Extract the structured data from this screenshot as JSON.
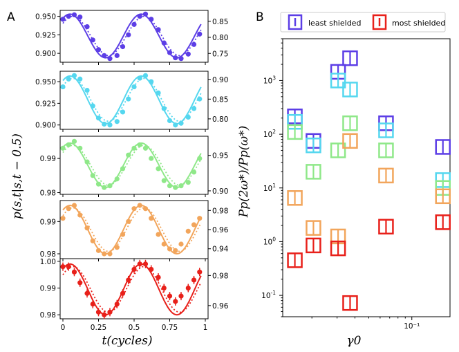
{
  "panels": {
    "left": "A",
    "right": "B"
  },
  "chart_data": [
    {
      "type": "line",
      "title": "A",
      "xlabel": "t(cycles)",
      "ylabel": "p(s,t|s,t − 0.5)",
      "x_ticks": [
        "0",
        "0.25",
        "0.5",
        "0.75",
        "1"
      ],
      "xlim": [
        0,
        1
      ],
      "subplots": [
        {
          "name": "purple",
          "color": "#5c3ee6",
          "ylim": [
            0.888,
            0.958
          ],
          "left_ticks": [
            "0.900",
            "0.925",
            "0.950"
          ],
          "left_tick_values": [
            0.9,
            0.925,
            0.95
          ],
          "right_ticks": [
            "0.75",
            "0.80",
            "0.85"
          ],
          "right_tick_fracs": [
            0.17,
            0.48,
            0.79
          ],
          "fit": {
            "mean": 0.9235,
            "amp": 0.0295,
            "phase": 0.3
          },
          "points": [
            [
              0.0,
              0.946
            ],
            [
              0.04,
              0.95
            ],
            [
              0.08,
              0.952
            ],
            [
              0.12,
              0.949
            ],
            [
              0.17,
              0.936
            ],
            [
              0.21,
              0.918
            ],
            [
              0.25,
              0.905
            ],
            [
              0.29,
              0.897
            ],
            [
              0.33,
              0.893
            ],
            [
              0.38,
              0.897
            ],
            [
              0.42,
              0.909
            ],
            [
              0.46,
              0.925
            ],
            [
              0.5,
              0.939
            ],
            [
              0.54,
              0.95
            ],
            [
              0.58,
              0.953
            ],
            [
              0.62,
              0.946
            ],
            [
              0.67,
              0.932
            ],
            [
              0.71,
              0.914
            ],
            [
              0.75,
              0.901
            ],
            [
              0.79,
              0.894
            ],
            [
              0.83,
              0.893
            ],
            [
              0.88,
              0.899
            ],
            [
              0.92,
              0.912
            ],
            [
              0.96,
              0.926
            ]
          ]
        },
        {
          "name": "cyan",
          "color": "#55d7ef",
          "ylim": [
            0.895,
            0.962
          ],
          "left_ticks": [
            "0.900",
            "0.925",
            "0.950"
          ],
          "left_tick_values": [
            0.9,
            0.925,
            0.95
          ],
          "right_ticks": [
            "0.80",
            "0.85",
            "0.90"
          ],
          "right_tick_fracs": [
            0.18,
            0.52,
            0.86
          ],
          "fit": {
            "mean": 0.929,
            "amp": 0.0275,
            "phase": 0.3
          },
          "points": [
            [
              0.0,
              0.944
            ],
            [
              0.04,
              0.953
            ],
            [
              0.08,
              0.957
            ],
            [
              0.12,
              0.953
            ],
            [
              0.17,
              0.94
            ],
            [
              0.21,
              0.922
            ],
            [
              0.25,
              0.908
            ],
            [
              0.29,
              0.901
            ],
            [
              0.33,
              0.9
            ],
            [
              0.38,
              0.904
            ],
            [
              0.42,
              0.915
            ],
            [
              0.46,
              0.93
            ],
            [
              0.5,
              0.944
            ],
            [
              0.54,
              0.954
            ],
            [
              0.58,
              0.957
            ],
            [
              0.62,
              0.95
            ],
            [
              0.67,
              0.937
            ],
            [
              0.71,
              0.919
            ],
            [
              0.75,
              0.905
            ],
            [
              0.79,
              0.9
            ],
            [
              0.83,
              0.902
            ],
            [
              0.88,
              0.909
            ],
            [
              0.92,
              0.919
            ],
            [
              0.96,
              0.93
            ]
          ]
        },
        {
          "name": "green",
          "color": "#8fe889",
          "ylim": [
            0.9795,
            0.9965
          ],
          "left_ticks": [
            "0.98",
            "0.99"
          ],
          "left_tick_values": [
            0.98,
            0.99
          ],
          "right_ticks": [
            "0.90",
            "0.95"
          ],
          "right_tick_fracs": [
            0.06,
            0.67
          ],
          "fit": {
            "mean": 0.988,
            "amp": 0.0065,
            "phase": 0.3
          },
          "points": [
            [
              0.0,
              0.993
            ],
            [
              0.04,
              0.994
            ],
            [
              0.08,
              0.995
            ],
            [
              0.12,
              0.993
            ],
            [
              0.17,
              0.989
            ],
            [
              0.21,
              0.985
            ],
            [
              0.25,
              0.9825
            ],
            [
              0.29,
              0.9815
            ],
            [
              0.33,
              0.982
            ],
            [
              0.38,
              0.984
            ],
            [
              0.42,
              0.987
            ],
            [
              0.46,
              0.991
            ],
            [
              0.5,
              0.993
            ],
            [
              0.54,
              0.994
            ],
            [
              0.58,
              0.993
            ],
            [
              0.62,
              0.99
            ],
            [
              0.67,
              0.987
            ],
            [
              0.71,
              0.9835
            ],
            [
              0.75,
              0.982
            ],
            [
              0.79,
              0.9815
            ],
            [
              0.83,
              0.982
            ],
            [
              0.88,
              0.983
            ],
            [
              0.92,
              0.986
            ],
            [
              0.96,
              0.99
            ]
          ]
        },
        {
          "name": "orange",
          "color": "#f2a55b",
          "ylim": [
            0.9785,
            0.9965
          ],
          "left_ticks": [
            "0.98",
            "0.99"
          ],
          "left_tick_values": [
            0.98,
            0.99
          ],
          "right_ticks": [
            "0.94",
            "0.96",
            "0.98"
          ],
          "right_tick_fracs": [
            0.17,
            0.5,
            0.83
          ],
          "fit": {
            "mean": 0.9875,
            "amp": 0.0075,
            "phase": 0.3
          },
          "points": [
            [
              0.0,
              0.991
            ],
            [
              0.04,
              0.994
            ],
            [
              0.08,
              0.995
            ],
            [
              0.12,
              0.992
            ],
            [
              0.17,
              0.988
            ],
            [
              0.21,
              0.984
            ],
            [
              0.25,
              0.981
            ],
            [
              0.29,
              0.98
            ],
            [
              0.33,
              0.98
            ],
            [
              0.38,
              0.982
            ],
            [
              0.42,
              0.986
            ],
            [
              0.46,
              0.99
            ],
            [
              0.5,
              0.994
            ],
            [
              0.54,
              0.995
            ],
            [
              0.58,
              0.994
            ],
            [
              0.62,
              0.991
            ],
            [
              0.67,
              0.986
            ],
            [
              0.71,
              0.983
            ],
            [
              0.75,
              0.9815
            ],
            [
              0.79,
              0.981
            ],
            [
              0.83,
              0.983
            ],
            [
              0.88,
              0.987
            ],
            [
              0.92,
              0.989
            ],
            [
              0.96,
              0.991
            ]
          ]
        },
        {
          "name": "red",
          "color": "#e8201a",
          "ylim": [
            0.9785,
            1.001
          ],
          "left_ticks": [
            "0.98",
            "0.99",
            "1.00"
          ],
          "left_tick_values": [
            0.98,
            0.99,
            1.0
          ],
          "right_ticks": [
            "0.96",
            "0.98"
          ],
          "right_tick_fracs": [
            0.22,
            0.72
          ],
          "fit": {
            "mean": 0.9895,
            "amp": 0.0095,
            "phase": 0.3
          },
          "points": [
            [
              0.0,
              0.998
            ],
            [
              0.04,
              0.998
            ],
            [
              0.08,
              0.996
            ],
            [
              0.12,
              0.992
            ],
            [
              0.17,
              0.988
            ],
            [
              0.21,
              0.984
            ],
            [
              0.25,
              0.981
            ],
            [
              0.29,
              0.98
            ],
            [
              0.33,
              0.981
            ],
            [
              0.38,
              0.984
            ],
            [
              0.42,
              0.988
            ],
            [
              0.46,
              0.993
            ],
            [
              0.5,
              0.997
            ],
            [
              0.54,
              0.999
            ],
            [
              0.58,
              0.999
            ],
            [
              0.62,
              0.997
            ],
            [
              0.67,
              0.994
            ],
            [
              0.71,
              0.99
            ],
            [
              0.75,
              0.987
            ],
            [
              0.79,
              0.985
            ],
            [
              0.83,
              0.987
            ],
            [
              0.88,
              0.99
            ],
            [
              0.92,
              0.993
            ],
            [
              0.96,
              0.996
            ]
          ]
        }
      ]
    },
    {
      "type": "scatter",
      "title": "B",
      "xlabel": "γ0",
      "ylabel": "Pp(2ω*)/Pp(ω*)",
      "xscale": "log",
      "yscale": "log",
      "xlim": [
        0.0125,
        0.185
      ],
      "ylim": [
        0.04,
        6000
      ],
      "x_ticks": [
        {
          "value": 0.1,
          "label": "10⁻¹"
        }
      ],
      "y_ticks": [
        {
          "value": 0.1,
          "base": "10",
          "exp": "-1"
        },
        {
          "value": 1,
          "base": "10",
          "exp": "0"
        },
        {
          "value": 10,
          "base": "10",
          "exp": "1"
        },
        {
          "value": 100,
          "base": "10",
          "exp": "2"
        },
        {
          "value": 1000,
          "base": "10",
          "exp": "3"
        }
      ],
      "legend": {
        "position": "top",
        "items": [
          {
            "label": "least shielded",
            "color": "#5c3ee6"
          },
          {
            "label": "most shielded",
            "color": "#e8201a"
          }
        ]
      },
      "series": [
        {
          "name": "purple",
          "color": "#5c3ee6",
          "points": [
            [
              0.0152,
              215
            ],
            [
              0.0205,
              75
            ],
            [
              0.0305,
              1450
            ],
            [
              0.037,
              2600
            ],
            [
              0.066,
              160
            ],
            [
              0.165,
              58
            ]
          ]
        },
        {
          "name": "cyan",
          "color": "#55d7ef",
          "points": [
            [
              0.0152,
              170
            ],
            [
              0.0205,
              62
            ],
            [
              0.0305,
              1000
            ],
            [
              0.037,
              680
            ],
            [
              0.066,
              118
            ],
            [
              0.165,
              14
            ]
          ]
        },
        {
          "name": "green",
          "color": "#8fe889",
          "points": [
            [
              0.0152,
              110
            ],
            [
              0.0205,
              20
            ],
            [
              0.0305,
              50
            ],
            [
              0.037,
              160
            ],
            [
              0.066,
              50
            ],
            [
              0.165,
              10
            ]
          ]
        },
        {
          "name": "orange",
          "color": "#f2a55b",
          "points": [
            [
              0.0152,
              6.5
            ],
            [
              0.0205,
              1.8
            ],
            [
              0.0305,
              1.25
            ],
            [
              0.037,
              75
            ],
            [
              0.066,
              17
            ],
            [
              0.165,
              7
            ]
          ]
        },
        {
          "name": "red",
          "color": "#e8201a",
          "points": [
            [
              0.0152,
              0.45
            ],
            [
              0.0205,
              0.85
            ],
            [
              0.0305,
              0.75
            ],
            [
              0.037,
              0.072
            ],
            [
              0.066,
              1.9
            ],
            [
              0.165,
              2.3
            ]
          ]
        }
      ]
    }
  ]
}
